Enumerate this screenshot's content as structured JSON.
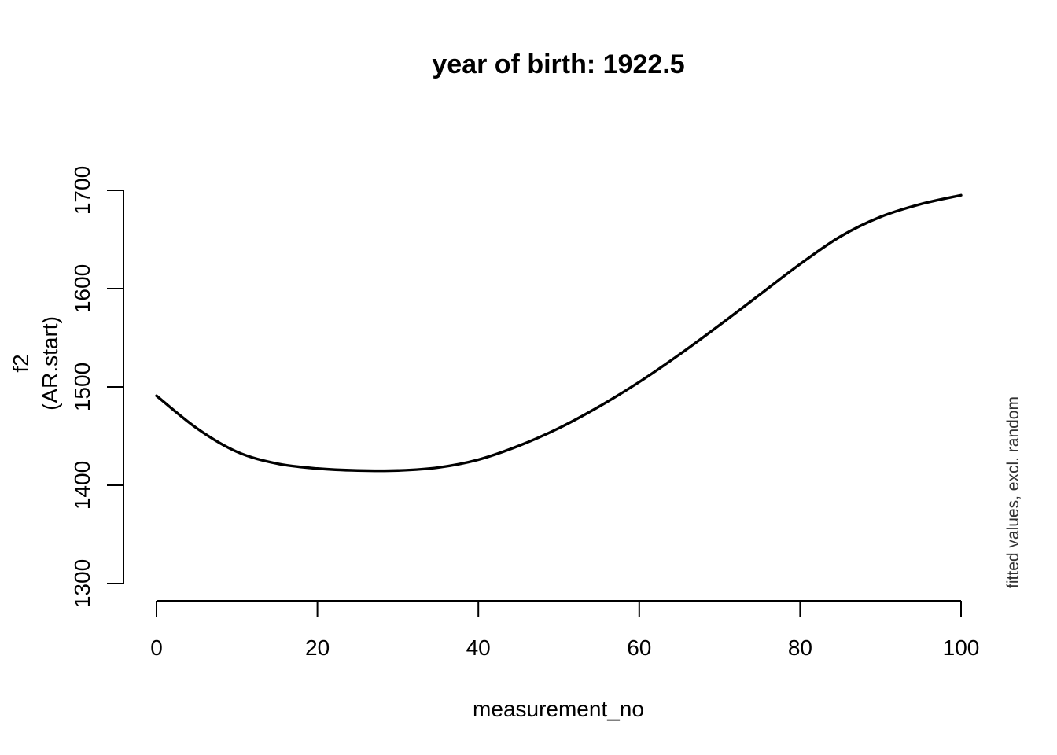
{
  "chart_data": {
    "type": "line",
    "title": "year of birth: 1922.5",
    "xlabel": "measurement_no",
    "ylabel_line1": "f2",
    "ylabel_line2": "(AR.start)",
    "side_note": "fitted values, excl. random",
    "xlim": [
      0,
      100
    ],
    "ylim": [
      1300,
      1700
    ],
    "x_ticks": [
      0,
      20,
      40,
      60,
      80,
      100
    ],
    "y_ticks": [
      1300,
      1400,
      1500,
      1600,
      1700
    ],
    "grid": false,
    "legend": "none",
    "series": [
      {
        "color": "#000000",
        "x": [
          0,
          5,
          10,
          15,
          20,
          25,
          30,
          35,
          40,
          45,
          50,
          55,
          60,
          65,
          70,
          75,
          80,
          85,
          90,
          95,
          100
        ],
        "y": [
          1491,
          1458,
          1434,
          1422,
          1417,
          1415,
          1415,
          1418,
          1426,
          1440,
          1458,
          1480,
          1505,
          1533,
          1563,
          1594,
          1625,
          1653,
          1673,
          1686,
          1695
        ]
      }
    ]
  }
}
